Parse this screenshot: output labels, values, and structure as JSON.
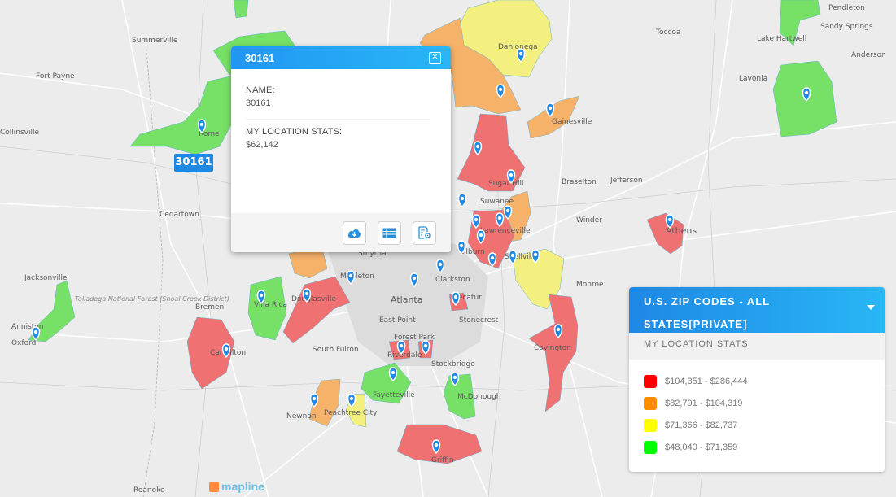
{
  "colors": {
    "tier1": "#ff1a1a",
    "tier2": "#ff8c1a",
    "tier3": "#ffff1a",
    "tier4": "#1aff1a",
    "accent": "#1e88e5",
    "pin": "#1e88e5"
  },
  "map": {
    "cities": [
      "Summerville",
      "Fort Payne",
      "Collinsville",
      "Rome",
      "Cedartown",
      "Jacksonville",
      "Anniston",
      "Oxford",
      "Bremen",
      "Villa Rica",
      "Douglasville",
      "Carrollton",
      "South Fulton",
      "Atlanta",
      "East Point",
      "Forest Park",
      "Riverdale",
      "Stockbridge",
      "Fayetteville",
      "McDonough",
      "Newnan",
      "Peachtree City",
      "Griffin",
      "Covington",
      "Stonecrest",
      "Decatur",
      "Clarkston",
      "Smyrna",
      "Mableton",
      "Lawrenceville",
      "Suwanee",
      "Sugar Hill",
      "Gainesville",
      "Dahlonega",
      "Braselton",
      "Jefferson",
      "Winder",
      "Monroe",
      "Athens",
      "Toccoa",
      "Lavonia",
      "Anderson",
      "Sandy Springs",
      "Pendleton",
      "Lake Hartwell",
      "Talladega National Forest (Shoal Creek District)",
      "Roanoke",
      "Snellville",
      "Lilburn"
    ],
    "logo": "mapline"
  },
  "selected_label": "30161",
  "popup": {
    "title": "30161",
    "close_icon": "close-icon",
    "fields": [
      {
        "label": "NAME:",
        "value": "30161"
      },
      {
        "label": "MY LOCATION STATS:",
        "value": "$62,142"
      }
    ],
    "buttons": [
      {
        "icon": "cloud-download-icon"
      },
      {
        "icon": "table-icon"
      },
      {
        "icon": "settings-document-icon"
      }
    ]
  },
  "legend": {
    "title": "U.S. ZIP CODES - ALL STATES[PRIVATE]",
    "subtitle": "MY LOCATION STATS",
    "caret_icon": "caret-down-icon",
    "items": [
      {
        "label": "$104,351 - $286,444",
        "color": "#ff0000"
      },
      {
        "label": "$82,791 - $104,319",
        "color": "#ff8c00"
      },
      {
        "label": "$71,366 - $82,737",
        "color": "#ffff00"
      },
      {
        "label": "$48,040 - $71,359",
        "color": "#00ff00"
      }
    ]
  }
}
